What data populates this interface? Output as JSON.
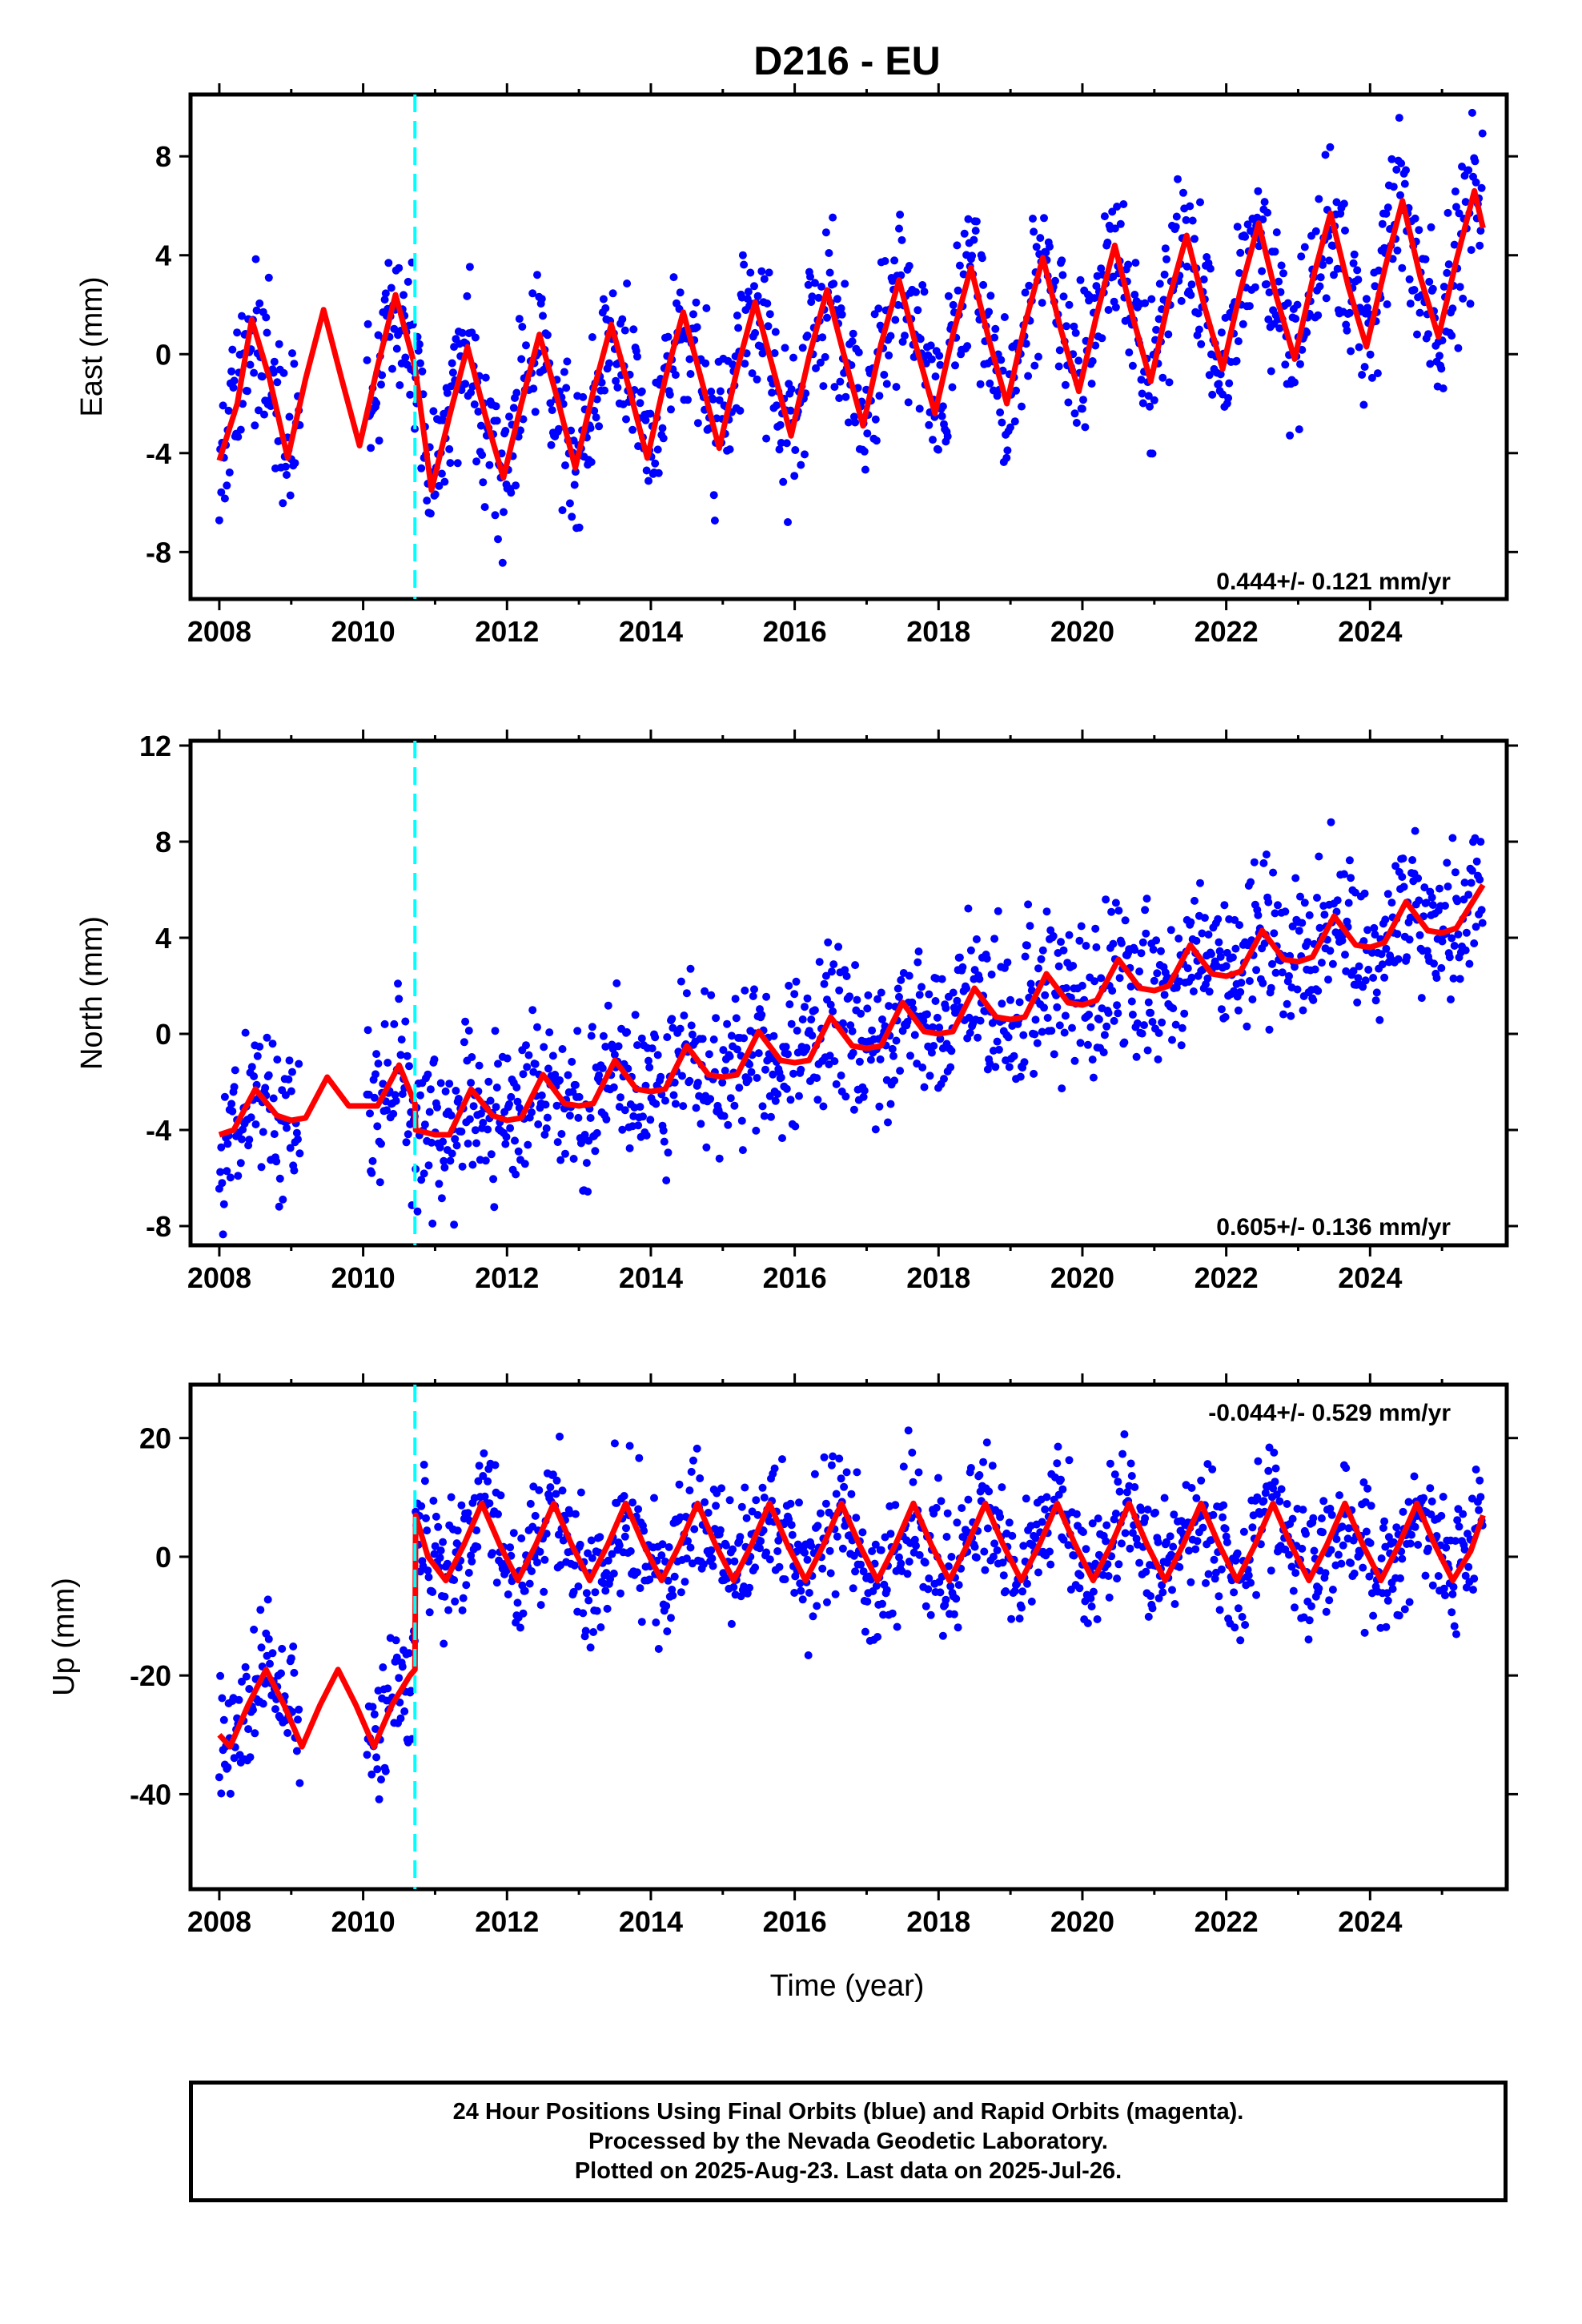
{
  "chart_data": [
    {
      "type": "scatter",
      "title": "D216 - EU",
      "ylabel": "East (mm)",
      "xlabel": "",
      "xlim": [
        2007.6,
        2025.9
      ],
      "ylim": [
        -9.9,
        10.5
      ],
      "x_ticks": [
        "2008",
        "2010",
        "2012",
        "2014",
        "2016",
        "2018",
        "2020",
        "2022",
        "2024"
      ],
      "y_ticks": [
        "8",
        "4",
        "0",
        "-4",
        "-8"
      ],
      "annotation": "0.444+/- 0.121 mm/yr",
      "colors": {
        "points": "#0000ff",
        "fit": "#ff0000",
        "event": "#00ffff"
      },
      "event_year": 2010.72,
      "series": [
        {
          "kind": "fit",
          "x": [
            2008.0,
            2008.25,
            2008.45,
            2008.7,
            2008.95,
            2009.2,
            2009.45,
            2009.7,
            2009.95,
            2010.2,
            2010.45,
            2010.72,
            2010.95,
            2011.2,
            2011.45,
            2011.7,
            2011.95,
            2012.2,
            2012.45,
            2012.7,
            2012.95,
            2013.2,
            2013.45,
            2013.7,
            2013.95,
            2014.2,
            2014.45,
            2014.7,
            2014.95,
            2015.2,
            2015.45,
            2015.7,
            2015.95,
            2016.2,
            2016.45,
            2016.7,
            2016.95,
            2017.2,
            2017.45,
            2017.7,
            2017.95,
            2018.2,
            2018.45,
            2018.7,
            2018.95,
            2019.2,
            2019.45,
            2019.7,
            2019.95,
            2020.2,
            2020.45,
            2020.7,
            2020.95,
            2021.2,
            2021.45,
            2021.7,
            2021.95,
            2022.2,
            2022.45,
            2022.7,
            2022.95,
            2023.2,
            2023.45,
            2023.7,
            2023.95,
            2024.2,
            2024.45,
            2024.7,
            2024.95,
            2025.2,
            2025.45,
            2025.57
          ],
          "y": [
            -4.3,
            -2.0,
            1.4,
            -1.0,
            -4.2,
            -1.0,
            1.8,
            -1.0,
            -3.7,
            -0.5,
            2.4,
            -0.5,
            -5.5,
            -2.5,
            0.3,
            -2.5,
            -5.0,
            -2.0,
            0.8,
            -1.8,
            -4.6,
            -1.5,
            1.2,
            -1.4,
            -4.2,
            -1.0,
            1.7,
            -1.0,
            -3.8,
            -0.6,
            2.1,
            -0.6,
            -3.3,
            -0.1,
            2.6,
            -0.2,
            -2.9,
            0.4,
            3.0,
            0.2,
            -2.4,
            0.8,
            3.5,
            0.6,
            -2.0,
            1.2,
            3.9,
            1.0,
            -1.5,
            1.6,
            4.4,
            1.5,
            -1.1,
            2.2,
            4.8,
            1.9,
            -0.6,
            2.6,
            5.3,
            2.3,
            -0.2,
            3.0,
            5.7,
            2.7,
            0.3,
            3.4,
            6.2,
            3.1,
            0.7,
            3.8,
            6.6,
            5.1
          ]
        }
      ]
    },
    {
      "type": "scatter",
      "title": "",
      "ylabel": "North (mm)",
      "xlabel": "",
      "xlim": [
        2007.6,
        2025.9
      ],
      "ylim": [
        -8.8,
        12.2
      ],
      "x_ticks": [
        "2008",
        "2010",
        "2012",
        "2014",
        "2016",
        "2018",
        "2020",
        "2022",
        "2024"
      ],
      "y_ticks": [
        "12",
        "8",
        "4",
        "0",
        "-4",
        "-8"
      ],
      "annotation": "0.605+/- 0.136 mm/yr",
      "colors": {
        "points": "#0000ff",
        "fit": "#ff0000",
        "event": "#00ffff"
      },
      "event_year": 2010.72,
      "series": [
        {
          "kind": "fit",
          "x": [
            2008.0,
            2008.2,
            2008.5,
            2008.8,
            2009.0,
            2009.2,
            2009.5,
            2009.8,
            2010.0,
            2010.2,
            2010.5,
            2010.72,
            2010.73,
            2011.0,
            2011.2,
            2011.5,
            2011.8,
            2012.0,
            2012.2,
            2012.5,
            2012.8,
            2013.0,
            2013.2,
            2013.5,
            2013.8,
            2014.0,
            2014.2,
            2014.5,
            2014.8,
            2015.0,
            2015.2,
            2015.5,
            2015.8,
            2016.0,
            2016.2,
            2016.5,
            2016.8,
            2017.0,
            2017.2,
            2017.5,
            2017.8,
            2018.0,
            2018.2,
            2018.5,
            2018.8,
            2019.0,
            2019.2,
            2019.5,
            2019.8,
            2020.0,
            2020.2,
            2020.5,
            2020.8,
            2021.0,
            2021.2,
            2021.5,
            2021.8,
            2022.0,
            2022.2,
            2022.5,
            2022.8,
            2023.0,
            2023.2,
            2023.5,
            2023.8,
            2024.0,
            2024.2,
            2024.5,
            2024.8,
            2025.0,
            2025.2,
            2025.57
          ],
          "y": [
            -4.2,
            -4.0,
            -2.3,
            -3.4,
            -3.6,
            -3.5,
            -1.8,
            -3.0,
            -3.0,
            -3.0,
            -1.3,
            -2.9,
            -4.0,
            -4.2,
            -4.2,
            -2.3,
            -3.4,
            -3.6,
            -3.5,
            -1.7,
            -2.9,
            -3.0,
            -2.9,
            -1.1,
            -2.3,
            -2.4,
            -2.3,
            -0.5,
            -1.7,
            -1.8,
            -1.7,
            0.1,
            -1.1,
            -1.2,
            -1.1,
            0.7,
            -0.5,
            -0.6,
            -0.5,
            1.3,
            0.1,
            -0.0,
            0.1,
            1.9,
            0.7,
            0.6,
            0.7,
            2.5,
            1.3,
            1.2,
            1.4,
            3.1,
            1.9,
            1.8,
            2.0,
            3.7,
            2.5,
            2.4,
            2.6,
            4.3,
            3.1,
            3.0,
            3.2,
            4.9,
            3.7,
            3.6,
            3.8,
            5.5,
            4.3,
            4.2,
            4.4,
            6.2
          ]
        }
      ]
    },
    {
      "type": "scatter",
      "title": "",
      "ylabel": "Up (mm)",
      "xlabel": "Time (year)",
      "xlim": [
        2007.6,
        2025.9
      ],
      "ylim": [
        -56,
        29
      ],
      "x_ticks": [
        "2008",
        "2010",
        "2012",
        "2014",
        "2016",
        "2018",
        "2020",
        "2022",
        "2024"
      ],
      "y_ticks": [
        "20",
        "0",
        "-20",
        "-40"
      ],
      "annotation": "-0.044+/- 0.529 mm/yr",
      "colors": {
        "points": "#0000ff",
        "fit": "#ff0000",
        "event": "#00ffff"
      },
      "event_year": 2010.72,
      "series": [
        {
          "kind": "fit",
          "x": [
            2008.0,
            2008.15,
            2008.4,
            2008.65,
            2008.9,
            2009.15,
            2009.4,
            2009.65,
            2009.9,
            2010.15,
            2010.4,
            2010.65,
            2010.72,
            2010.73,
            2010.9,
            2011.15,
            2011.4,
            2011.65,
            2011.9,
            2012.15,
            2012.4,
            2012.65,
            2012.9,
            2013.15,
            2013.4,
            2013.65,
            2013.9,
            2014.15,
            2014.4,
            2014.65,
            2014.9,
            2015.15,
            2015.4,
            2015.65,
            2015.9,
            2016.15,
            2016.4,
            2016.65,
            2016.9,
            2017.15,
            2017.4,
            2017.65,
            2017.9,
            2018.15,
            2018.4,
            2018.65,
            2018.9,
            2019.15,
            2019.4,
            2019.65,
            2019.9,
            2020.15,
            2020.4,
            2020.65,
            2020.9,
            2021.15,
            2021.4,
            2021.65,
            2021.9,
            2022.15,
            2022.4,
            2022.65,
            2022.9,
            2023.15,
            2023.4,
            2023.65,
            2023.9,
            2024.15,
            2024.4,
            2024.65,
            2024.9,
            2025.15,
            2025.4,
            2025.57
          ],
          "y": [
            -30,
            -32,
            -25,
            -19,
            -25,
            -32,
            -25,
            -19,
            -25,
            -32,
            -25,
            -20,
            -19,
            7,
            0,
            -4,
            2,
            9,
            2,
            -4,
            2,
            9,
            2,
            -4,
            2,
            9,
            2,
            -4,
            2,
            9,
            2,
            -4,
            2,
            9,
            2,
            -4,
            2,
            9,
            2,
            -4,
            2,
            9,
            2,
            -4,
            2,
            9,
            2,
            -4,
            2,
            9,
            2,
            -4,
            2,
            9,
            2,
            -4,
            2,
            9,
            2,
            -4,
            2,
            9,
            2,
            -4,
            2,
            9,
            2,
            -4,
            2,
            9,
            2,
            -4,
            1,
            7
          ]
        }
      ]
    }
  ],
  "footer": {
    "line1": "24 Hour Positions Using Final Orbits (blue) and Rapid Orbits (magenta).",
    "line2": "Processed by the Nevada Geodetic Laboratory.",
    "line3": "Plotted on 2025-Aug-23. Last data on 2025-Jul-26."
  }
}
